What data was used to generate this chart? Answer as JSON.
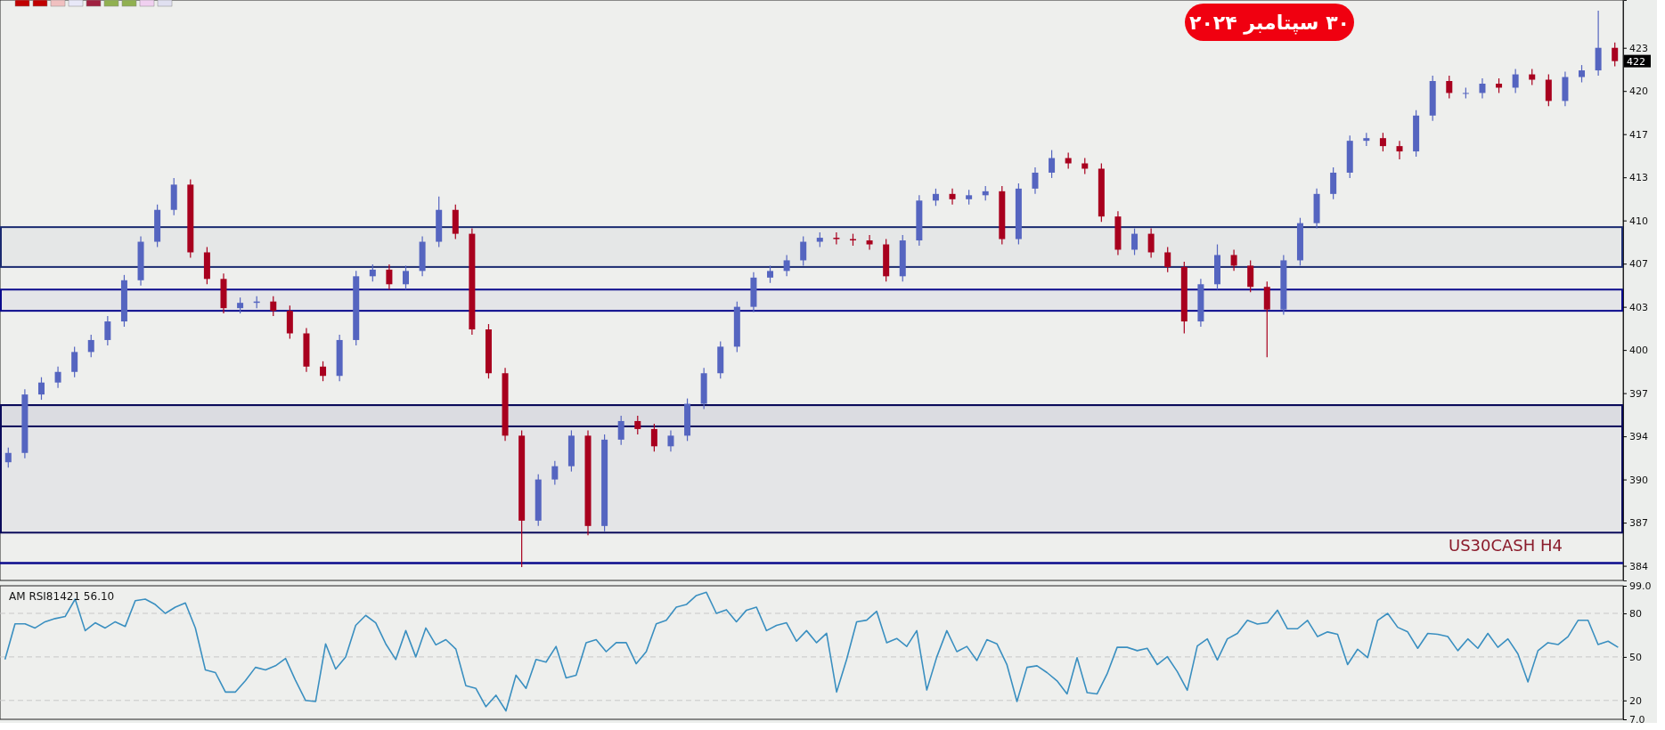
{
  "chart_data": [
    {
      "type": "candlestick",
      "categories": [
        null,
        null,
        null,
        null,
        null,
        null,
        null,
        null,
        null,
        null,
        null,
        null,
        null,
        null,
        null,
        null,
        null,
        null,
        null,
        null,
        null,
        null,
        null,
        null,
        null,
        null,
        null,
        null,
        null,
        null,
        null,
        null,
        null,
        null,
        null,
        null,
        null,
        null,
        null,
        null,
        null,
        null,
        null,
        null,
        null,
        null,
        null,
        null,
        null,
        null,
        null,
        null,
        null,
        null,
        null,
        null,
        null,
        null,
        null,
        null,
        null,
        null,
        null,
        null,
        null,
        null,
        null,
        null,
        null,
        null,
        null,
        null,
        null,
        null,
        null,
        null,
        null,
        null,
        null,
        null,
        null,
        null,
        null,
        null,
        null,
        null,
        null,
        null,
        null,
        null,
        null,
        null,
        null,
        null,
        null,
        null,
        null,
        null
      ],
      "ohlc": [
        [
          391.8,
          392.9,
          391.4,
          392.5
        ],
        [
          392.5,
          397.3,
          392.1,
          396.9
        ],
        [
          396.9,
          398.2,
          396.5,
          397.8
        ],
        [
          397.8,
          399.0,
          397.4,
          398.6
        ],
        [
          398.6,
          400.5,
          398.2,
          400.1
        ],
        [
          400.1,
          401.4,
          399.7,
          401.0
        ],
        [
          401.0,
          402.8,
          400.6,
          402.4
        ],
        [
          402.4,
          405.9,
          402.0,
          405.5
        ],
        [
          405.5,
          408.8,
          405.1,
          408.4
        ],
        [
          408.4,
          411.2,
          408.0,
          410.8
        ],
        [
          410.8,
          413.2,
          410.4,
          412.7
        ],
        [
          412.7,
          413.1,
          407.2,
          407.6
        ],
        [
          407.6,
          408.0,
          405.2,
          405.6
        ],
        [
          405.6,
          406.0,
          403.0,
          403.4
        ],
        [
          403.4,
          404.2,
          403.0,
          403.8
        ],
        [
          403.8,
          404.3,
          403.4,
          403.9
        ],
        [
          403.9,
          404.3,
          402.8,
          403.2
        ],
        [
          403.2,
          403.6,
          401.1,
          401.5
        ],
        [
          401.5,
          401.9,
          398.6,
          399.0
        ],
        [
          399.0,
          399.4,
          397.9,
          398.3
        ],
        [
          398.3,
          401.4,
          397.9,
          401.0
        ],
        [
          401.0,
          406.2,
          400.6,
          405.8
        ],
        [
          405.8,
          406.7,
          405.4,
          406.3
        ],
        [
          406.3,
          406.7,
          404.8,
          405.2
        ],
        [
          405.2,
          406.6,
          404.8,
          406.2
        ],
        [
          406.2,
          408.8,
          405.8,
          408.4
        ],
        [
          408.4,
          411.8,
          408.0,
          410.8
        ],
        [
          410.8,
          411.2,
          408.6,
          409.0
        ],
        [
          409.0,
          409.4,
          401.4,
          401.8
        ],
        [
          401.8,
          402.2,
          398.1,
          398.5
        ],
        [
          398.5,
          398.9,
          393.4,
          393.8
        ],
        [
          393.8,
          394.2,
          383.9,
          387.4
        ],
        [
          387.4,
          390.9,
          387.0,
          390.5
        ],
        [
          390.5,
          391.9,
          390.1,
          391.5
        ],
        [
          391.5,
          394.2,
          391.1,
          393.8
        ],
        [
          393.8,
          394.2,
          386.3,
          387.0
        ],
        [
          387.0,
          393.9,
          386.6,
          393.5
        ],
        [
          393.5,
          395.3,
          393.1,
          394.9
        ],
        [
          394.9,
          395.3,
          393.9,
          394.3
        ],
        [
          394.3,
          394.7,
          392.6,
          393.0
        ],
        [
          393.0,
          394.2,
          392.6,
          393.8
        ],
        [
          393.8,
          396.6,
          393.4,
          396.2
        ],
        [
          396.2,
          398.9,
          395.8,
          398.5
        ],
        [
          398.5,
          400.9,
          398.1,
          400.5
        ],
        [
          400.5,
          403.9,
          400.1,
          403.5
        ],
        [
          403.5,
          406.1,
          403.1,
          405.7
        ],
        [
          405.7,
          406.6,
          405.3,
          406.2
        ],
        [
          406.2,
          407.4,
          405.8,
          407.0
        ],
        [
          407.0,
          408.8,
          406.6,
          408.4
        ],
        [
          408.4,
          409.1,
          408.0,
          408.7
        ],
        [
          408.7,
          409.1,
          408.2,
          408.6
        ],
        [
          408.6,
          409.0,
          408.1,
          408.5
        ],
        [
          408.5,
          408.9,
          407.8,
          408.2
        ],
        [
          408.2,
          408.6,
          405.4,
          405.8
        ],
        [
          405.8,
          408.9,
          405.4,
          408.5
        ],
        [
          408.5,
          411.9,
          408.1,
          411.5
        ],
        [
          411.5,
          412.4,
          411.1,
          412.0
        ],
        [
          412.0,
          412.4,
          411.2,
          411.6
        ],
        [
          411.6,
          412.3,
          411.2,
          411.9
        ],
        [
          411.9,
          412.6,
          411.5,
          412.2
        ],
        [
          412.2,
          412.6,
          408.2,
          408.6
        ],
        [
          408.6,
          412.8,
          408.2,
          412.4
        ],
        [
          412.4,
          414.0,
          412.0,
          413.6
        ],
        [
          413.6,
          415.3,
          413.2,
          414.7
        ],
        [
          414.7,
          415.1,
          413.9,
          414.3
        ],
        [
          414.3,
          414.7,
          413.5,
          413.9
        ],
        [
          413.9,
          414.3,
          409.9,
          410.3
        ],
        [
          410.3,
          410.7,
          407.4,
          407.8
        ],
        [
          407.8,
          409.4,
          407.4,
          409.0
        ],
        [
          409.0,
          409.4,
          407.2,
          407.6
        ],
        [
          407.6,
          408.0,
          406.1,
          406.5
        ],
        [
          406.5,
          406.9,
          401.5,
          402.4
        ],
        [
          402.4,
          405.6,
          402.0,
          405.2
        ],
        [
          405.2,
          408.2,
          404.8,
          407.4
        ],
        [
          407.4,
          407.8,
          406.2,
          406.6
        ],
        [
          406.6,
          407.0,
          404.6,
          405.0
        ],
        [
          405.0,
          405.4,
          399.7,
          403.3
        ],
        [
          403.3,
          407.4,
          402.9,
          407.0
        ],
        [
          407.0,
          410.2,
          406.6,
          409.8
        ],
        [
          409.8,
          412.4,
          409.4,
          412.0
        ],
        [
          412.0,
          414.0,
          411.6,
          413.6
        ],
        [
          413.6,
          416.4,
          413.2,
          416.0
        ],
        [
          416.0,
          416.6,
          415.6,
          416.2
        ],
        [
          416.2,
          416.6,
          415.2,
          415.6
        ],
        [
          415.6,
          416.0,
          414.6,
          415.2
        ],
        [
          415.2,
          418.3,
          414.8,
          417.9
        ],
        [
          417.9,
          420.9,
          417.5,
          420.5
        ],
        [
          420.5,
          420.9,
          419.2,
          419.6
        ],
        [
          419.6,
          420.0,
          419.2,
          419.6
        ],
        [
          419.6,
          420.7,
          419.2,
          420.3
        ],
        [
          420.3,
          420.7,
          419.6,
          420.0
        ],
        [
          420.0,
          421.4,
          419.6,
          421.0
        ],
        [
          421.0,
          421.4,
          420.2,
          420.6
        ],
        [
          420.6,
          421.0,
          418.6,
          419.0
        ],
        [
          419.0,
          421.2,
          418.6,
          420.8
        ],
        [
          420.8,
          421.7,
          420.4,
          421.3
        ],
        [
          421.3,
          425.8,
          420.9,
          423.0
        ],
        [
          423.0,
          423.4,
          421.6,
          422.0
        ]
      ],
      "colors": [
        "#5565c0",
        "#5565c0",
        "#5565c0",
        "#5565c0",
        "#5565c0",
        "#5565c0",
        "#5565c0",
        "#5565c0",
        "#5565c0",
        "#5565c0",
        "#5565c0",
        "#a8001e",
        "#a8001e",
        "#a8001e",
        "#5565c0",
        "#5565c0",
        "#a8001e",
        "#a8001e",
        "#a8001e",
        "#a8001e",
        "#5565c0",
        "#5565c0",
        "#5565c0",
        "#a8001e",
        "#5565c0",
        "#5565c0",
        "#5565c0",
        "#a8001e",
        "#a8001e",
        "#a8001e",
        "#a8001e",
        "#a8001e",
        "#5565c0",
        "#5565c0",
        "#5565c0",
        "#a8001e",
        "#5565c0",
        "#5565c0",
        "#a8001e",
        "#a8001e",
        "#5565c0",
        "#5565c0",
        "#5565c0",
        "#5565c0",
        "#5565c0",
        "#5565c0",
        "#5565c0",
        "#5565c0",
        "#5565c0",
        "#5565c0",
        "#a8001e",
        "#a8001e",
        "#a8001e",
        "#a8001e",
        "#5565c0",
        "#5565c0",
        "#5565c0",
        "#a8001e",
        "#5565c0",
        "#5565c0",
        "#a8001e",
        "#5565c0",
        "#5565c0",
        "#5565c0",
        "#a8001e",
        "#a8001e",
        "#a8001e",
        "#a8001e",
        "#5565c0",
        "#a8001e",
        "#a8001e",
        "#a8001e",
        "#5565c0",
        "#5565c0",
        "#a8001e",
        "#a8001e",
        "#a8001e",
        "#5565c0",
        "#5565c0",
        "#5565c0",
        "#5565c0",
        "#5565c0",
        "#5565c0",
        "#a8001e",
        "#a8001e",
        "#5565c0",
        "#5565c0",
        "#a8001e",
        "#5565c0",
        "#5565c0",
        "#a8001e",
        "#5565c0",
        "#a8001e",
        "#a8001e",
        "#5565c0",
        "#5565c0",
        "#5565c0",
        "#a8001e"
      ],
      "ylim": [
        382.9,
        426.6
      ],
      "yticks": [
        {
          "value": 384,
          "label": "384"
        },
        {
          "value": 387.25,
          "label": "387"
        },
        {
          "value": 390.5,
          "label": "390"
        },
        {
          "value": 393.75,
          "label": "394"
        },
        {
          "value": 397,
          "label": "397"
        },
        {
          "value": 400.25,
          "label": "400"
        },
        {
          "value": 403.5,
          "label": "403"
        },
        {
          "value": 406.75,
          "label": "407"
        },
        {
          "value": 410,
          "label": "410"
        },
        {
          "value": 413.25,
          "label": "413"
        },
        {
          "value": 416.5,
          "label": "417"
        },
        {
          "value": 419.75,
          "label": "420"
        },
        {
          "value": 423,
          "label": "423"
        }
      ],
      "tick_labels": "y",
      "bands": [
        {
          "axis": "y",
          "from": 386.5,
          "to": 396.1,
          "color": "#0a0a5a"
        },
        {
          "axis": "y",
          "from": 394.5,
          "to": 396.1,
          "color": "#0a0a5a"
        },
        {
          "axis": "y",
          "from": 406.5,
          "to": 409.5,
          "color": "#1a2a70"
        },
        {
          "axis": "y",
          "from": 403.2,
          "to": 404.8,
          "color": "#0a0a8c"
        }
      ],
      "ref_lines": [
        {
          "axis": "y",
          "value": 384.2,
          "color": "#0a0a8c"
        }
      ],
      "annotations": [
        "۳۰ سپتامبر ۲۰۲۴",
        "US30CASH H4",
        {
          "text": "422",
          "y": 422.0
        }
      ]
    },
    {
      "type": "line",
      "title": "AM RSI81421 56.10",
      "categories": [
        null,
        null,
        null,
        null,
        null,
        null,
        null,
        null,
        null,
        null,
        null,
        null,
        null,
        null,
        null,
        null,
        null,
        null,
        null,
        null,
        null,
        null,
        null,
        null,
        null,
        null,
        null,
        null,
        null,
        null,
        null,
        null,
        null,
        null,
        null,
        null,
        null,
        null,
        null,
        null,
        null,
        null,
        null,
        null,
        null,
        null,
        null,
        null,
        null,
        null,
        null,
        null,
        null,
        null,
        null,
        null,
        null,
        null,
        null,
        null,
        null,
        null,
        null,
        null,
        null,
        null,
        null,
        null,
        null,
        null,
        null,
        null,
        null,
        null,
        null,
        null,
        null,
        null,
        null,
        null,
        null,
        null,
        null,
        null,
        null,
        null,
        null,
        null,
        null,
        null,
        null,
        null,
        null,
        null,
        null,
        null,
        null,
        null,
        null,
        null,
        null,
        null,
        null,
        null,
        null,
        null,
        null,
        null,
        null,
        null,
        null,
        null,
        null,
        null,
        null,
        null,
        null,
        null,
        null,
        null,
        null,
        null,
        null,
        null,
        null,
        null,
        null,
        null,
        null,
        null,
        null,
        null,
        null,
        null,
        null,
        null,
        null,
        null,
        null,
        null,
        null,
        null,
        null,
        null,
        null,
        null,
        null,
        null,
        null,
        null,
        null,
        null,
        null,
        null,
        null,
        null,
        null,
        null,
        null,
        null,
        null,
        null
      ],
      "series": [
        {
          "color": "#3a8fc0",
          "values": [
            48.2,
            72.8,
            72.8,
            69.9,
            74.2,
            76.4,
            77.8,
            89.8,
            68.1,
            73.5,
            69.9,
            74.2,
            71.0,
            88.7,
            89.8,
            86.1,
            80.0,
            84.3,
            87.2,
            69.9,
            41.0,
            39.2,
            25.8,
            25.8,
            33.7,
            42.8,
            41.0,
            43.9,
            48.9,
            33.7,
            20.0,
            19.3,
            59.0,
            41.7,
            50.0,
            71.7,
            78.6,
            73.5,
            59.0,
            48.2,
            68.1,
            50.0,
            69.9,
            58.3,
            61.9,
            55.4,
            30.1,
            28.3,
            15.7,
            23.6,
            12.8,
            37.4,
            28.3,
            48.2,
            46.4,
            57.2,
            35.5,
            37.4,
            59.8,
            61.9,
            53.6,
            59.8,
            59.8,
            45.3,
            53.6,
            72.8,
            75.3,
            84.3,
            86.1,
            92.3,
            94.5,
            80.0,
            82.5,
            74.2,
            82.2,
            84.3,
            68.1,
            71.7,
            73.5,
            60.8,
            68.1,
            59.8,
            66.3,
            25.8,
            48.2,
            74.2,
            75.3,
            81.4,
            59.8,
            62.7,
            57.2,
            68.1,
            27.2,
            50.0,
            68.1,
            53.6,
            57.2,
            47.5,
            61.9,
            59.0,
            44.6,
            19.3,
            42.8,
            43.9,
            39.2,
            33.5,
            24.5,
            49.5,
            25.4,
            24.5,
            38.3,
            56.6,
            56.6,
            54.3,
            55.9,
            44.7,
            50.2,
            39.9,
            27.0,
            57.5,
            62.4,
            47.9,
            62.4,
            66.2,
            75.2,
            72.6,
            73.6,
            82.2,
            69.4,
            69.4,
            75.2,
            64.0,
            67.2,
            65.6,
            44.7,
            55.3,
            49.5,
            75.2,
            80.0,
            70.4,
            67.2,
            55.9,
            66.2,
            65.6,
            64.0,
            54.3,
            62.4,
            55.9,
            66.2,
            56.6,
            62.4,
            52.1,
            32.8,
            54.3,
            59.8,
            58.5,
            64.0,
            75.2,
            75.2,
            58.5,
            60.8,
            56.6
          ]
        }
      ],
      "ylim": [
        7,
        99
      ],
      "yticks": [
        {
          "value": 99,
          "label": "99.0"
        },
        {
          "value": 80,
          "label": "80"
        },
        {
          "value": 50,
          "label": "50"
        },
        {
          "value": 20,
          "label": "20"
        },
        {
          "value": 7,
          "label": "7.0"
        }
      ],
      "grid": "y",
      "tick_labels": "y"
    }
  ]
}
